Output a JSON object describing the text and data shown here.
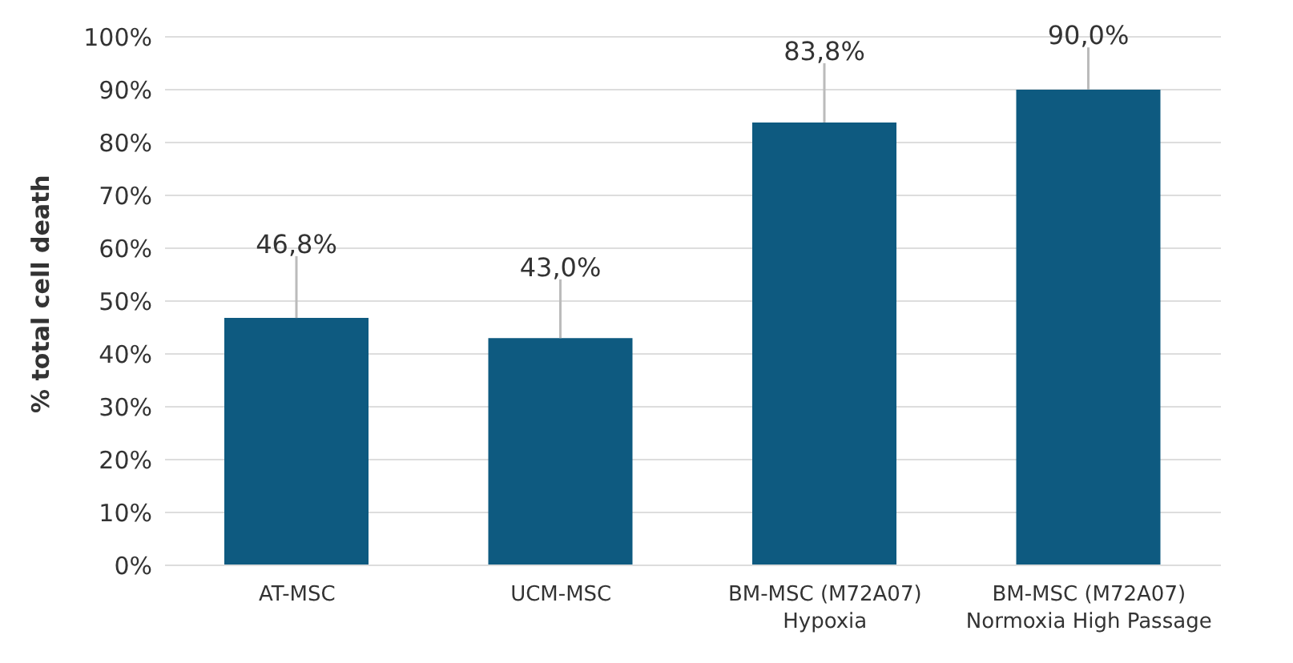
{
  "chart_data": {
    "type": "bar",
    "ylabel": "% total cell death",
    "categories": [
      "AT-MSC",
      "UCM-MSC",
      "BM-MSC (M72A07)\nHypoxia",
      "BM-MSC (M72A07)\nNormoxia High Passage"
    ],
    "values": [
      46.8,
      43.0,
      83.8,
      90.0
    ],
    "value_labels": [
      "46,8%",
      "43,0%",
      "83,8%",
      "90,0%"
    ],
    "errors": [
      [
        46.8,
        58.5
      ],
      [
        43.0,
        54.1
      ],
      [
        83.8,
        95.0
      ],
      [
        90.0,
        98.0
      ]
    ],
    "color": "#0e5a80",
    "ylim": [
      0,
      100
    ],
    "yticks": [
      {
        "value": 0,
        "label": "0%"
      },
      {
        "value": 10,
        "label": "10%"
      },
      {
        "value": 20,
        "label": "20%"
      },
      {
        "value": 30,
        "label": "30%"
      },
      {
        "value": 40,
        "label": "40%"
      },
      {
        "value": 50,
        "label": "50%"
      },
      {
        "value": 60,
        "label": "60%"
      },
      {
        "value": 70,
        "label": "70%"
      },
      {
        "value": 80,
        "label": "80%"
      },
      {
        "value": 90,
        "label": "90%"
      },
      {
        "value": 100,
        "label": "100%"
      }
    ],
    "grid": "y"
  }
}
